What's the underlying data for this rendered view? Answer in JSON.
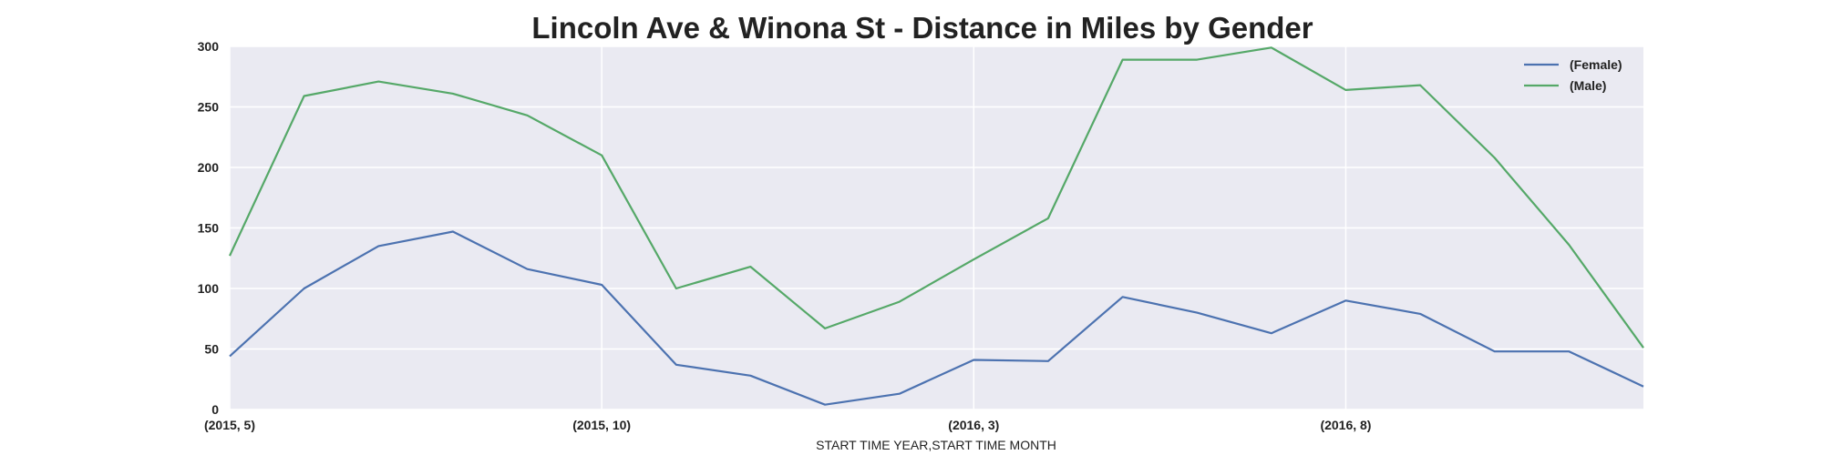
{
  "chart_data": {
    "type": "line",
    "title": "Lincoln Ave & Winona St - Distance in Miles by Gender",
    "xlabel": "START TIME YEAR,START TIME MONTH",
    "ylabel": "",
    "x": [
      "(2015, 5)",
      "(2015, 6)",
      "(2015, 7)",
      "(2015, 8)",
      "(2015, 9)",
      "(2015, 10)",
      "(2015, 11)",
      "(2015, 12)",
      "(2016, 1)",
      "(2016, 2)",
      "(2016, 3)",
      "(2016, 4)",
      "(2016, 5)",
      "(2016, 6)",
      "(2016, 7)",
      "(2016, 8)",
      "(2016, 9)",
      "(2016, 10)",
      "(2016, 11)",
      "(2016, 12)"
    ],
    "x_tick_labels": [
      "(2015, 5)",
      "(2015, 10)",
      "(2016, 3)",
      "(2016, 8)"
    ],
    "y_ticks": [
      0,
      50,
      100,
      150,
      200,
      250,
      300
    ],
    "ylim": [
      0,
      300
    ],
    "grid": true,
    "legend_position": "top-right",
    "series": [
      {
        "name": "(Female)",
        "color": "#4c72b0",
        "values": [
          44,
          100,
          135,
          147,
          116,
          103,
          37,
          28,
          4,
          13,
          41,
          40,
          93,
          80,
          63,
          90,
          79,
          48,
          48,
          19
        ]
      },
      {
        "name": "(Male)",
        "color": "#55a868",
        "values": [
          127,
          259,
          271,
          261,
          243,
          210,
          100,
          118,
          67,
          89,
          124,
          158,
          289,
          289,
          299,
          264,
          268,
          208,
          136,
          51
        ]
      }
    ]
  }
}
